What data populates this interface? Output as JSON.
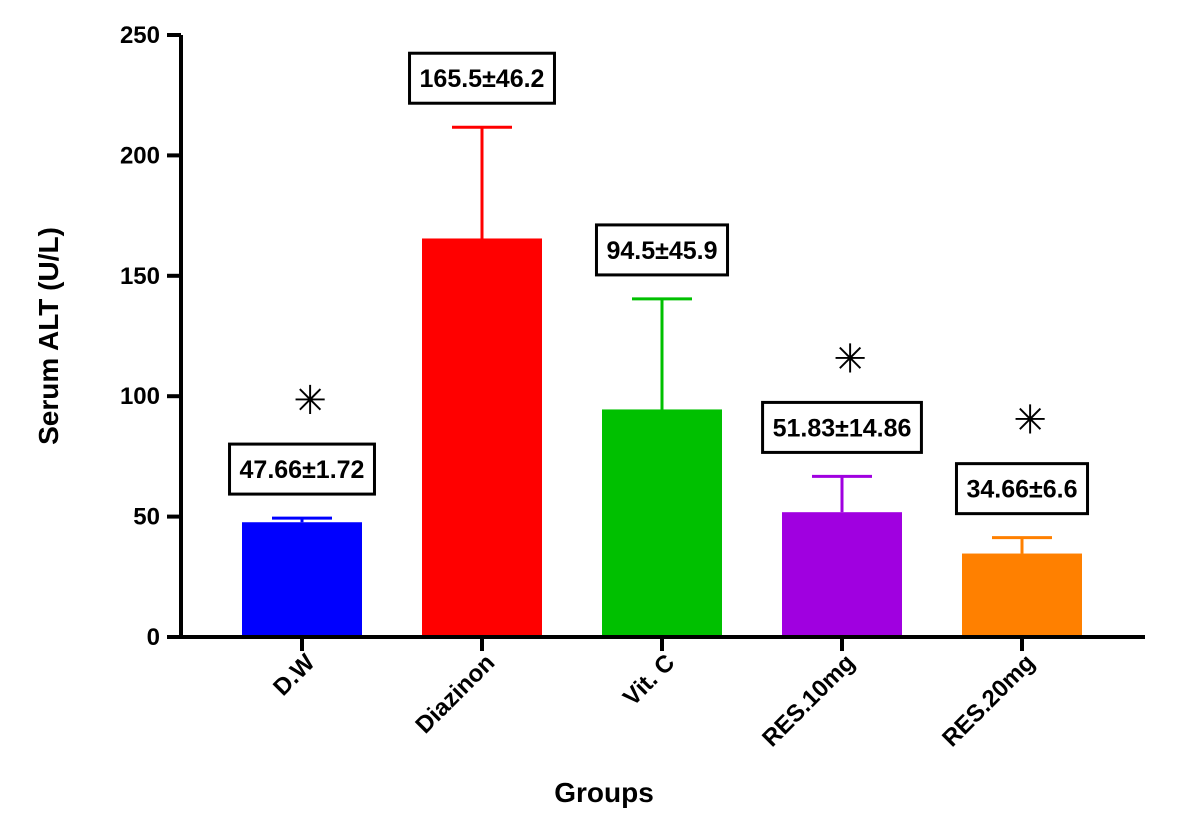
{
  "chart_data": {
    "type": "bar",
    "title": "",
    "xlabel": "Groups",
    "ylabel": "Serum ALT (U/L)",
    "ylim": [
      0,
      250
    ],
    "yticks": [
      0,
      50,
      100,
      150,
      200,
      250
    ],
    "ytick_labels": [
      "0",
      "50",
      "100",
      "150",
      "200",
      "250"
    ],
    "categories": [
      "D.W",
      "Diazinon",
      "Vit. C",
      "RES.10mg",
      "RES.20mg"
    ],
    "values": [
      47.66,
      165.5,
      94.5,
      51.83,
      34.66
    ],
    "errors": [
      1.72,
      46.2,
      45.9,
      14.86,
      6.6
    ],
    "value_labels": [
      "47.66±1.72",
      "165.5±46.2",
      "94.5±45.9",
      "51.83±14.86",
      "34.66±6.6"
    ],
    "significance": [
      "✳",
      "",
      "",
      "✳",
      "✳"
    ],
    "colors": [
      "#0000ff",
      "#ff0000",
      "#00c000",
      "#a000e0",
      "#ff8000"
    ],
    "grid": false,
    "legend": "none"
  }
}
